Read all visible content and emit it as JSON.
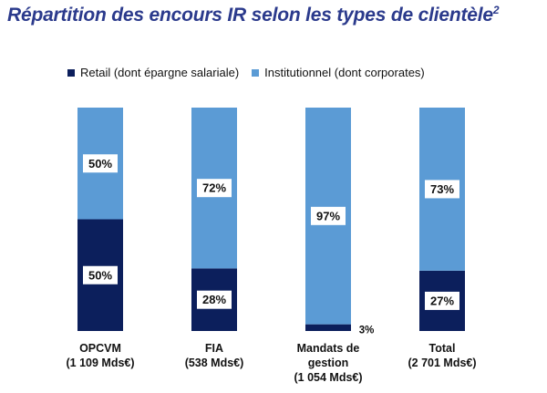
{
  "title": "Répartition des encours IR selon les types de clientèle",
  "title_sup": "2",
  "colors": {
    "retail": "#0c1f5c",
    "institutionnel": "#5b9bd5"
  },
  "chart_data": {
    "type": "bar",
    "stacked": true,
    "percent": true,
    "categories": [
      {
        "name": "OPCVM",
        "sub": "(1 109 Mds€)"
      },
      {
        "name": "FIA",
        "sub": "(538 Mds€)"
      },
      {
        "name": "Mandats de gestion",
        "sub": "(1 054 Mds€)"
      },
      {
        "name": "Total",
        "sub": "(2 701 Mds€)"
      }
    ],
    "series": [
      {
        "name": "Retail (dont épargne salariale)",
        "values": [
          50,
          28,
          3,
          27
        ],
        "labels": [
          "50%",
          "28%",
          "3%",
          "27%"
        ]
      },
      {
        "name": "Institutionnel (dont corporates)",
        "values": [
          50,
          72,
          97,
          73
        ],
        "labels": [
          "50%",
          "72%",
          "97%",
          "73%"
        ]
      }
    ],
    "ylim": [
      0,
      100
    ],
    "legend_position": "top",
    "grid": false
  }
}
